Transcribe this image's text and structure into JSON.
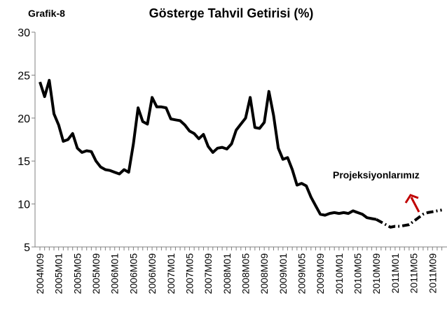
{
  "chart_data": {
    "type": "line",
    "title": "Gösterge Tahvil Getirisi (%)",
    "subtitle": "Grafik-8",
    "annotation": "Projeksiyonlarımız",
    "categories": [
      "2004M09",
      null,
      null,
      null,
      "2005M01",
      null,
      null,
      null,
      "2005M05",
      null,
      null,
      null,
      "2005M09",
      null,
      null,
      null,
      "2006M01",
      null,
      null,
      null,
      "2006M05",
      null,
      null,
      null,
      "2006M09",
      null,
      null,
      null,
      "2007M01",
      null,
      null,
      null,
      "2007M05",
      null,
      null,
      null,
      "2007M09",
      null,
      null,
      null,
      "2008M01",
      null,
      null,
      null,
      "2008M05",
      null,
      null,
      null,
      "2008M09",
      null,
      null,
      null,
      "2009M01",
      null,
      null,
      null,
      "2009M05",
      null,
      null,
      null,
      "2009M09",
      null,
      null,
      null,
      "2010M01",
      null,
      null,
      null,
      "2010M05",
      null,
      null,
      null,
      "2010M09",
      null,
      null,
      null,
      "2011M01",
      null,
      null,
      null,
      "2011M05",
      null,
      null,
      null,
      "2011M09",
      null,
      null
    ],
    "series": [
      {
        "color": "#000000",
        "style": "solid",
        "values": [
          24.2,
          22.5,
          24.4,
          20.5,
          19.2,
          17.3,
          17.5,
          18.2,
          16.5,
          16.0,
          16.2,
          16.1,
          15.0,
          14.3,
          14.0,
          13.9,
          13.7,
          13.5,
          14.0,
          13.7,
          17.0,
          21.2,
          19.6,
          19.3,
          22.4,
          21.3,
          21.3,
          21.2,
          19.9,
          19.8,
          19.7,
          19.2,
          18.5,
          18.2,
          17.6,
          18.1,
          16.7,
          16.0,
          16.5,
          16.6,
          16.4,
          17.0,
          18.6,
          19.3,
          20.0,
          22.4,
          18.9,
          18.8,
          19.5,
          23.1,
          20.3,
          16.5,
          15.2,
          15.4,
          14.0,
          12.2,
          12.4,
          12.1,
          10.8,
          9.8,
          8.8,
          8.7,
          8.9,
          9.0,
          8.9,
          9.0,
          8.9,
          9.2,
          9.0,
          8.8,
          8.4,
          8.3,
          8.2,
          null,
          null,
          null,
          null,
          null,
          null,
          null,
          null,
          null,
          null,
          null,
          null,
          null,
          null
        ]
      },
      {
        "color": "#000000",
        "style": "dashed",
        "values": [
          null,
          null,
          null,
          null,
          null,
          null,
          null,
          null,
          null,
          null,
          null,
          null,
          null,
          null,
          null,
          null,
          null,
          null,
          null,
          null,
          null,
          null,
          null,
          null,
          null,
          null,
          null,
          null,
          null,
          null,
          null,
          null,
          null,
          null,
          null,
          null,
          null,
          null,
          null,
          null,
          null,
          null,
          null,
          null,
          null,
          null,
          null,
          null,
          null,
          null,
          null,
          null,
          null,
          null,
          null,
          null,
          null,
          null,
          null,
          null,
          null,
          null,
          null,
          null,
          null,
          null,
          null,
          null,
          null,
          null,
          null,
          null,
          8.2,
          7.9,
          7.6,
          7.3,
          7.4,
          7.4,
          7.5,
          7.6,
          8.0,
          8.4,
          8.8,
          9.0,
          9.1,
          9.2,
          9.3
        ]
      }
    ],
    "ylim": [
      5,
      30
    ],
    "yticks": [
      5,
      10,
      15,
      20,
      25,
      30
    ],
    "grid": false
  }
}
